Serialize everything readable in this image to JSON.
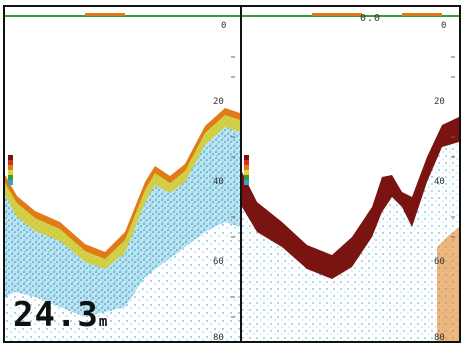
{
  "left_pane": {
    "scale_labels": [
      "0",
      "20",
      "40",
      "60",
      "80"
    ],
    "depth_value": "24.3",
    "depth_unit": "m"
  },
  "right_pane": {
    "top_value": "0.0",
    "scale_labels": [
      "0",
      "20",
      "40",
      "60",
      "80"
    ]
  },
  "colors": {
    "bottom_strong": "#7a1410",
    "bottom_warm": "#e07b18",
    "echo_mid": "#e5d22a",
    "echo_cool": "#2aa7c9",
    "echo_light": "#9fd6ea",
    "surface_line": "#3a9b3a"
  },
  "icons": [
    "color-bar-icon"
  ]
}
